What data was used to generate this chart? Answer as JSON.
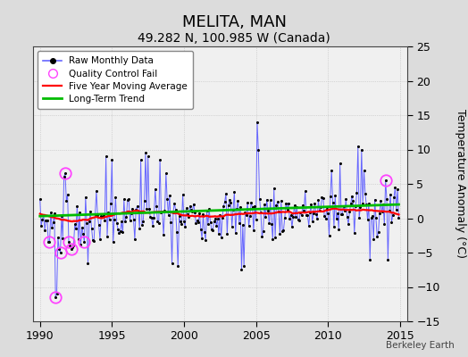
{
  "title": "MELITA, MAN",
  "subtitle": "49.282 N, 100.985 W (Canada)",
  "ylabel": "Temperature Anomaly (°C)",
  "xlim": [
    1989.5,
    2015.5
  ],
  "ylim": [
    -15,
    25
  ],
  "yticks": [
    -15,
    -10,
    -5,
    0,
    5,
    10,
    15,
    20,
    25
  ],
  "xticks": [
    1990,
    1995,
    2000,
    2005,
    2010,
    2015
  ],
  "background_color": "#dcdcdc",
  "plot_bg_color": "#f0f0f0",
  "raw_line_color": "#6666ff",
  "raw_marker_color": "#000000",
  "moving_avg_color": "#ff0000",
  "trend_color": "#00bb00",
  "qc_fail_color": "#ff44ff",
  "watermark": "Berkeley Earth",
  "title_fontsize": 13,
  "subtitle_fontsize": 10,
  "tick_fontsize": 9,
  "ylabel_fontsize": 9
}
